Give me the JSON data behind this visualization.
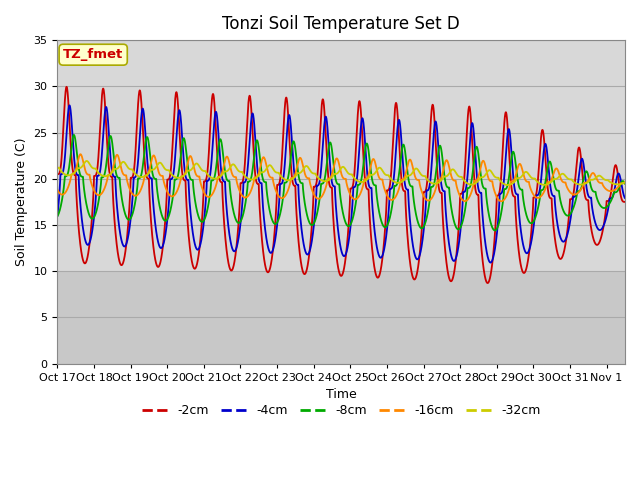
{
  "title": "Tonzi Soil Temperature Set D",
  "xlabel": "Time",
  "ylabel": "Soil Temperature (C)",
  "ylim": [
    0,
    35
  ],
  "x_tick_labels": [
    "Oct 17",
    "Oct 18",
    "Oct 19",
    "Oct 20",
    "Oct 21",
    "Oct 22",
    "Oct 23",
    "Oct 24",
    "Oct 25",
    "Oct 26",
    "Oct 27",
    "Oct 28",
    "Oct 29",
    "Oct 30",
    "Oct 31",
    "Nov 1"
  ],
  "legend_labels": [
    "-2cm",
    "-4cm",
    "-8cm",
    "-16cm",
    "-32cm"
  ],
  "line_colors": [
    "#cc0000",
    "#0000cc",
    "#00aa00",
    "#ff8800",
    "#cccc00"
  ],
  "annotation_text": "TZ_fmet",
  "annotation_color": "#cc0000",
  "annotation_bg": "#ffffcc",
  "annotation_border": "#aaaa00",
  "background_color": "#ffffff",
  "plot_bg_upper": "#d8d8d8",
  "plot_bg_lower": "#e0e0e0",
  "grid_color": "#c0c0c0",
  "title_fontsize": 12,
  "axis_label_fontsize": 9,
  "tick_fontsize": 8
}
